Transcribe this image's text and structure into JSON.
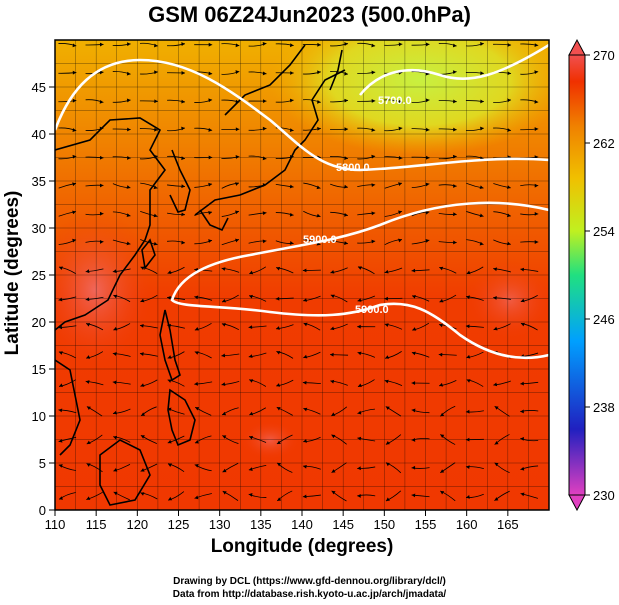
{
  "title": "GSM 06Z24Jun2023 (500.0hPa)",
  "xlabel": "Longitude (degrees)",
  "ylabel": "Latitude  (degrees)",
  "x_ticks": [
    "110",
    "115",
    "120",
    "125",
    "130",
    "135",
    "140",
    "145",
    "150",
    "155",
    "160",
    "165"
  ],
  "y_ticks": [
    "0",
    "5",
    "10",
    "15",
    "20",
    "25",
    "30",
    "35",
    "40",
    "45"
  ],
  "colorbar": {
    "ticks": [
      "230",
      "238",
      "246",
      "254",
      "262",
      "270"
    ],
    "min": 230,
    "max": 270,
    "colors": [
      "#e040c0",
      "#2020c0",
      "#00a0ff",
      "#20e080",
      "#c0f020",
      "#f0c000",
      "#f08000",
      "#f03000",
      "#f05050"
    ]
  },
  "contours": {
    "labels": [
      "5700.0",
      "5800.0",
      "5900.0",
      "5900.0"
    ],
    "color": "#ffffff"
  },
  "credits": {
    "line1": "Drawing by DCL (https://www.gfd-dennou.org/library/dcl/)",
    "line2": "Data from http://database.rish.kyoto-u.ac.jp/arch/jmadata/"
  },
  "map": {
    "lon_range": [
      110,
      170
    ],
    "lat_range": [
      0,
      50
    ]
  }
}
